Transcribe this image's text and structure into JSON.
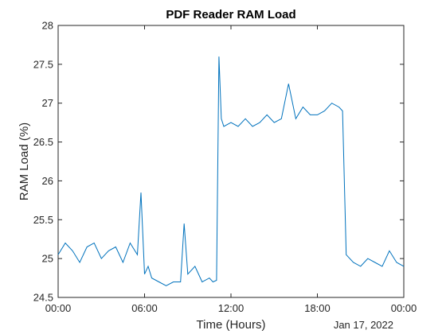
{
  "chart_data": {
    "type": "line",
    "title": "PDF Reader RAM Load",
    "xlabel": "Time (Hours)",
    "ylabel": "RAM Load (%)",
    "date_label": "Jan 17, 2022",
    "xlim": [
      "00:00",
      "00:00"
    ],
    "ylim": [
      24.5,
      28
    ],
    "x_ticks": [
      "00:00",
      "06:00",
      "12:00",
      "18:00",
      "00:00"
    ],
    "y_ticks": [
      "24.5",
      "25",
      "25.5",
      "26",
      "26.5",
      "27",
      "27.5",
      "28"
    ],
    "grid": false,
    "line_color": "#0072bd",
    "series": [
      {
        "x": [
          "00:00",
          "00:30",
          "01:00",
          "01:30",
          "02:00",
          "02:30",
          "03:00",
          "03:30",
          "04:00",
          "04:30",
          "05:00",
          "05:30",
          "05:45",
          "06:00",
          "06:15",
          "06:30",
          "07:00",
          "07:30",
          "08:00",
          "08:30",
          "08:45",
          "09:00",
          "09:30",
          "10:00",
          "10:30",
          "10:45",
          "11:00",
          "11:10",
          "11:20",
          "11:30",
          "12:00",
          "12:30",
          "13:00",
          "13:30",
          "14:00",
          "14:30",
          "15:00",
          "15:30",
          "16:00",
          "16:30",
          "17:00",
          "17:30",
          "18:00",
          "18:30",
          "19:00",
          "19:30",
          "19:45",
          "20:00",
          "20:30",
          "21:00",
          "21:30",
          "22:00",
          "22:30",
          "23:00",
          "23:30",
          "24:00"
        ],
        "values": [
          25.05,
          25.2,
          25.1,
          24.95,
          25.15,
          25.2,
          25.0,
          25.1,
          25.15,
          24.95,
          25.2,
          25.05,
          25.85,
          24.8,
          24.9,
          24.75,
          24.7,
          24.65,
          24.7,
          24.7,
          25.45,
          24.8,
          24.9,
          24.7,
          24.75,
          24.7,
          24.72,
          27.6,
          26.8,
          26.7,
          26.75,
          26.7,
          26.8,
          26.7,
          26.75,
          26.85,
          26.75,
          26.8,
          27.25,
          26.8,
          26.95,
          26.85,
          26.85,
          26.9,
          27.0,
          26.95,
          26.9,
          25.05,
          24.95,
          24.9,
          25.0,
          24.95,
          24.9,
          25.1,
          24.95,
          24.9
        ]
      }
    ]
  }
}
